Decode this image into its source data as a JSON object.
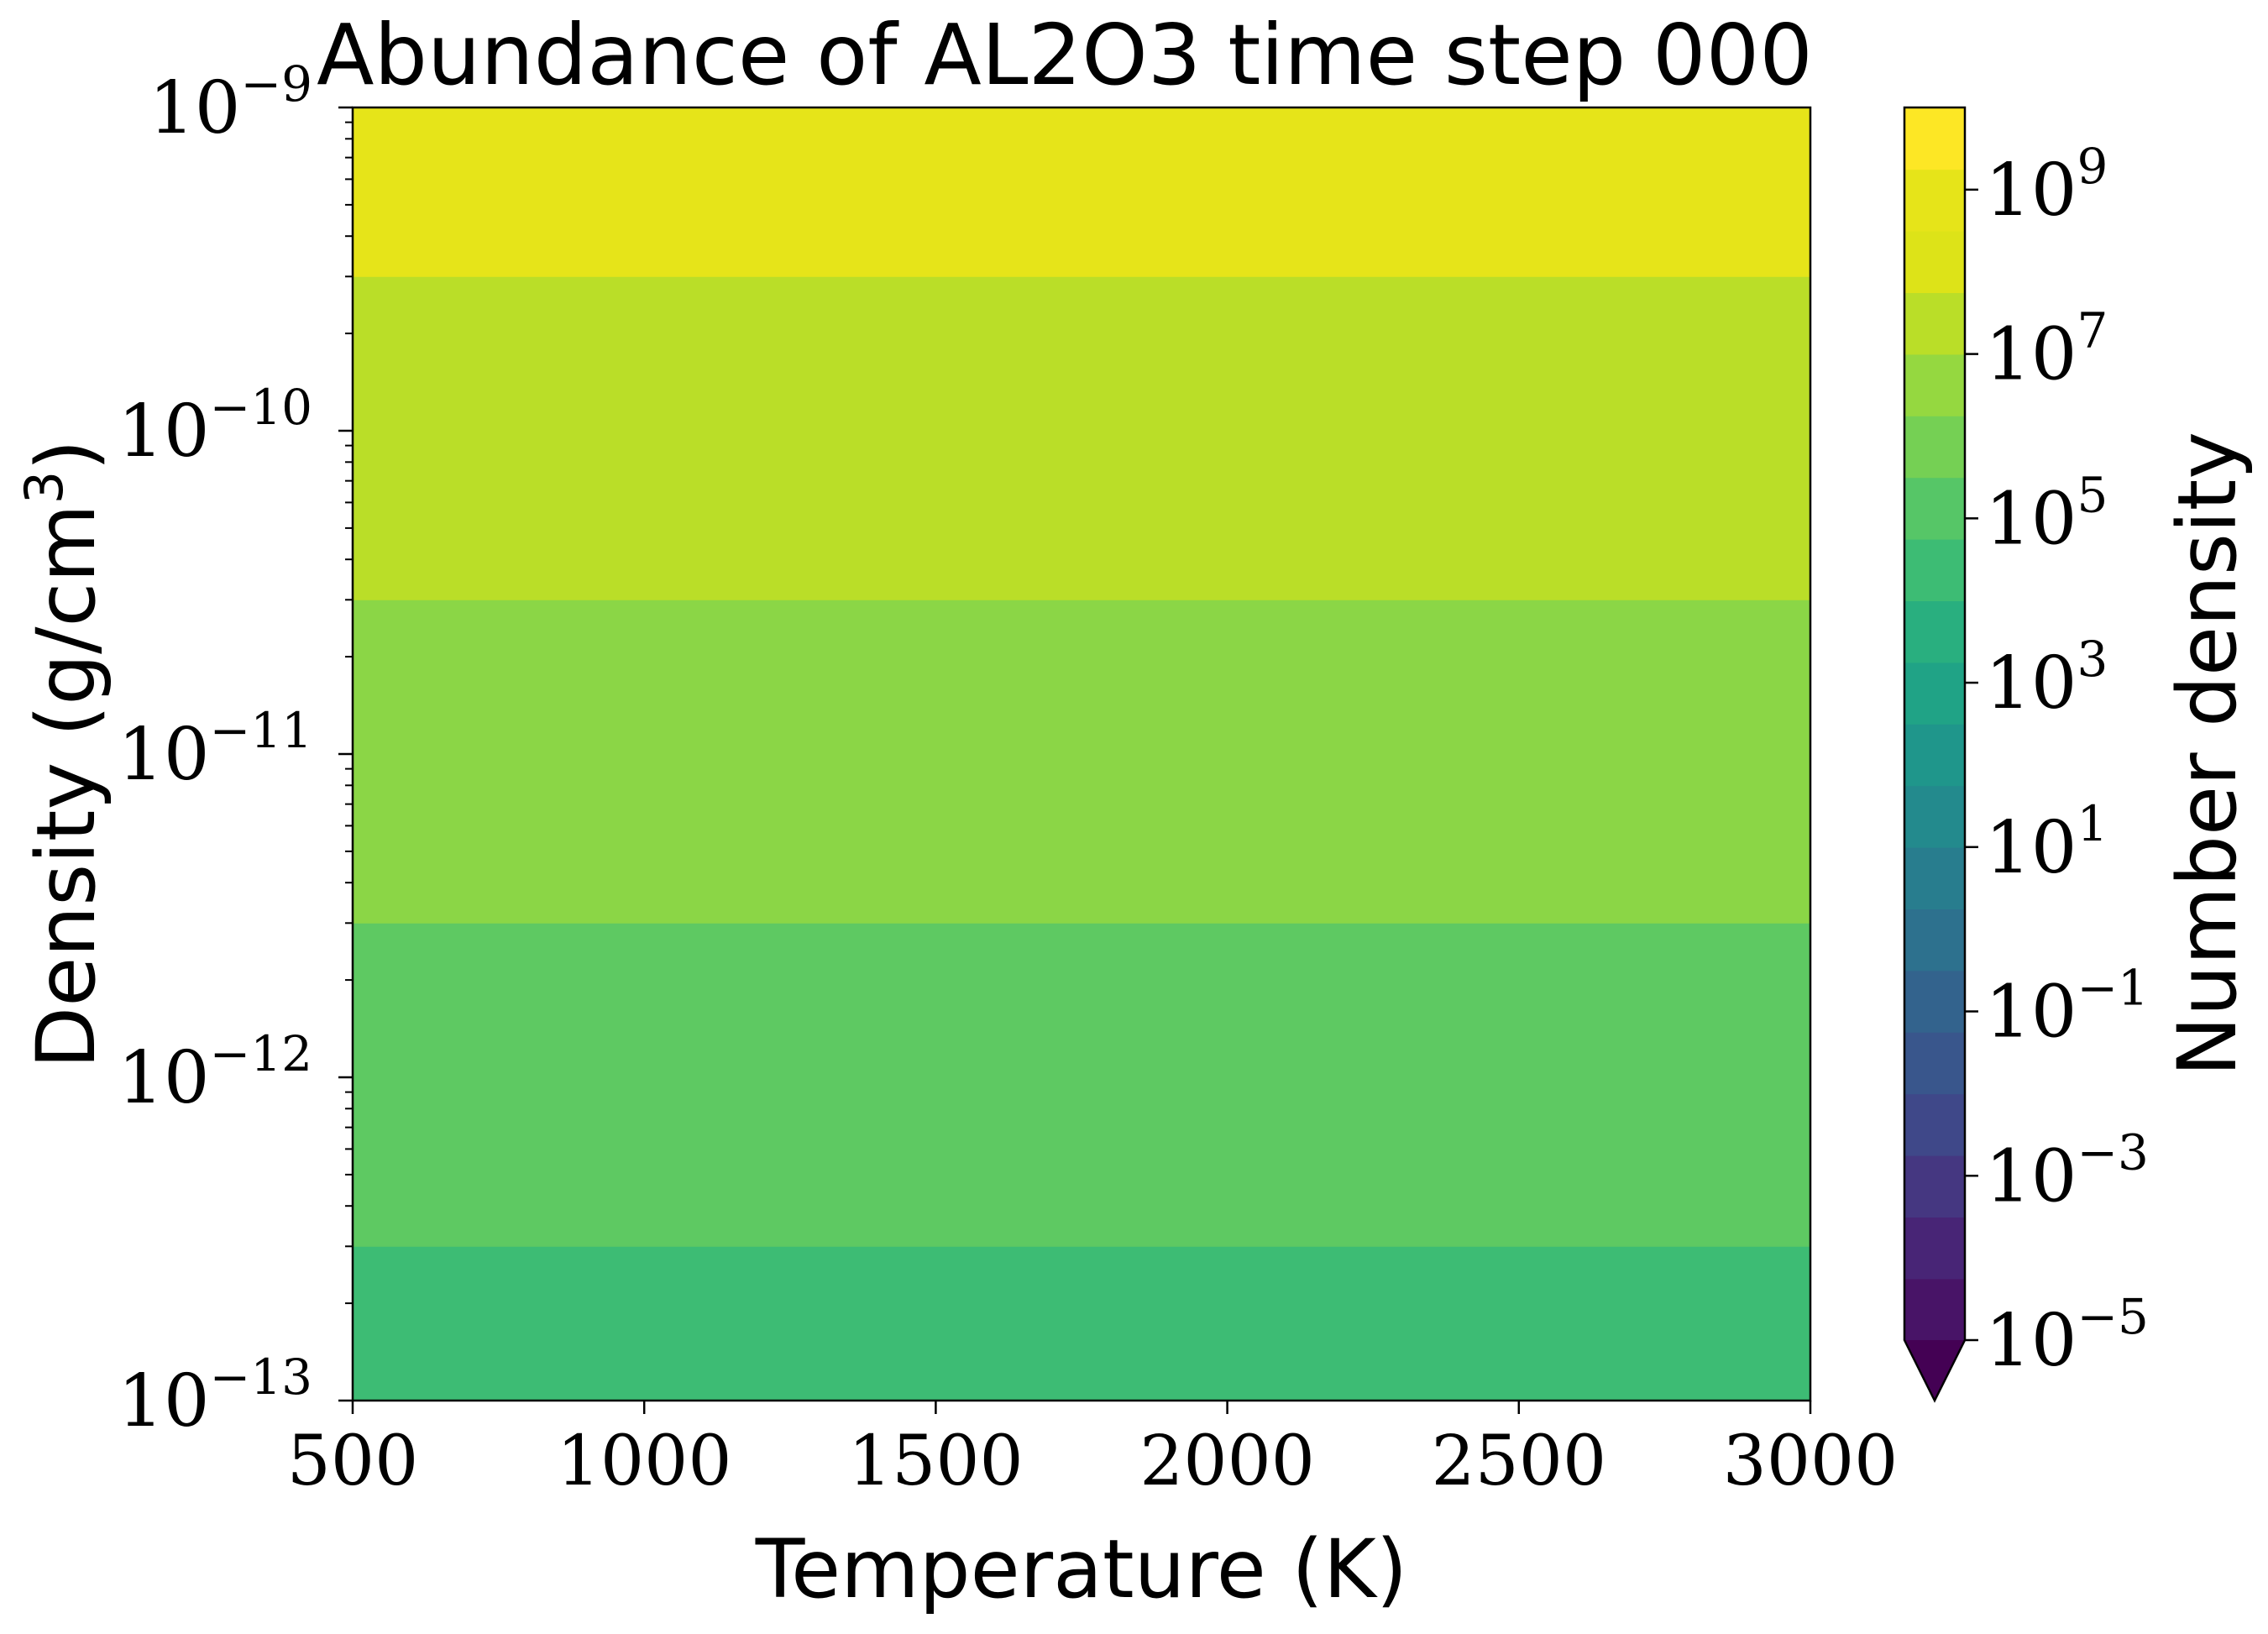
{
  "chart_data": {
    "type": "heatmap",
    "title": "Abundance of AL2O3 time step 000",
    "xlabel": "Temperature (K)",
    "ylabel": "Density (g/cm3)",
    "xlim": [
      500,
      3000
    ],
    "x_ticks": [
      500,
      1000,
      1500,
      2000,
      2500,
      3000
    ],
    "y_scale": "log",
    "ylim": [
      1e-13,
      1e-09
    ],
    "y_ticks": [
      {
        "value": 1e-13,
        "exp": "−13"
      },
      {
        "value": 1e-12,
        "exp": "−12"
      },
      {
        "value": 1e-11,
        "exp": "−11"
      },
      {
        "value": 1e-10,
        "exp": "−10"
      },
      {
        "value": 1e-09,
        "exp": "−9"
      }
    ],
    "bands": [
      {
        "density_range": [
          1e-13,
          3e-13
        ],
        "level_log10": 4.5,
        "color": "#3dbc74"
      },
      {
        "density_range": [
          3e-13,
          3e-12
        ],
        "level_log10": 5.5,
        "color": "#5ec962"
      },
      {
        "density_range": [
          3e-12,
          3e-11
        ],
        "level_log10": 6.5,
        "color": "#8bd646"
      },
      {
        "density_range": [
          3e-11,
          3e-10
        ],
        "level_log10": 7.5,
        "color": "#bade28"
      },
      {
        "density_range": [
          3e-10,
          1e-09
        ],
        "level_log10": 8.5,
        "color": "#e6e419"
      }
    ],
    "colorbar": {
      "label": "Number density",
      "scale": "log",
      "extend": "min",
      "extend_color": "#440154",
      "range_log10": [
        -5,
        10
      ],
      "ticks": [
        {
          "value": 1e-05,
          "base": "10",
          "exp": "−5"
        },
        {
          "value": 0.001,
          "base": "10",
          "exp": "−3"
        },
        {
          "value": 0.1,
          "base": "10",
          "exp": "−1"
        },
        {
          "value": 10.0,
          "base": "10",
          "exp": "1"
        },
        {
          "value": 1000.0,
          "base": "10",
          "exp": "3"
        },
        {
          "value": 100000.0,
          "base": "10",
          "exp": "5"
        },
        {
          "value": 10000000.0,
          "base": "10",
          "exp": "7"
        },
        {
          "value": 1000000000.0,
          "base": "10",
          "exp": "9"
        }
      ],
      "level_colors": [
        "#481467",
        "#482576",
        "#453781",
        "#3f4889",
        "#39568c",
        "#33638d",
        "#2d718e",
        "#287d8e",
        "#238a8d",
        "#1f968b",
        "#20a386",
        "#29af7f",
        "#3dbc74",
        "#56c667",
        "#75d054",
        "#95d840",
        "#bade28",
        "#dde318",
        "#e6e419",
        "#fde725"
      ]
    }
  }
}
